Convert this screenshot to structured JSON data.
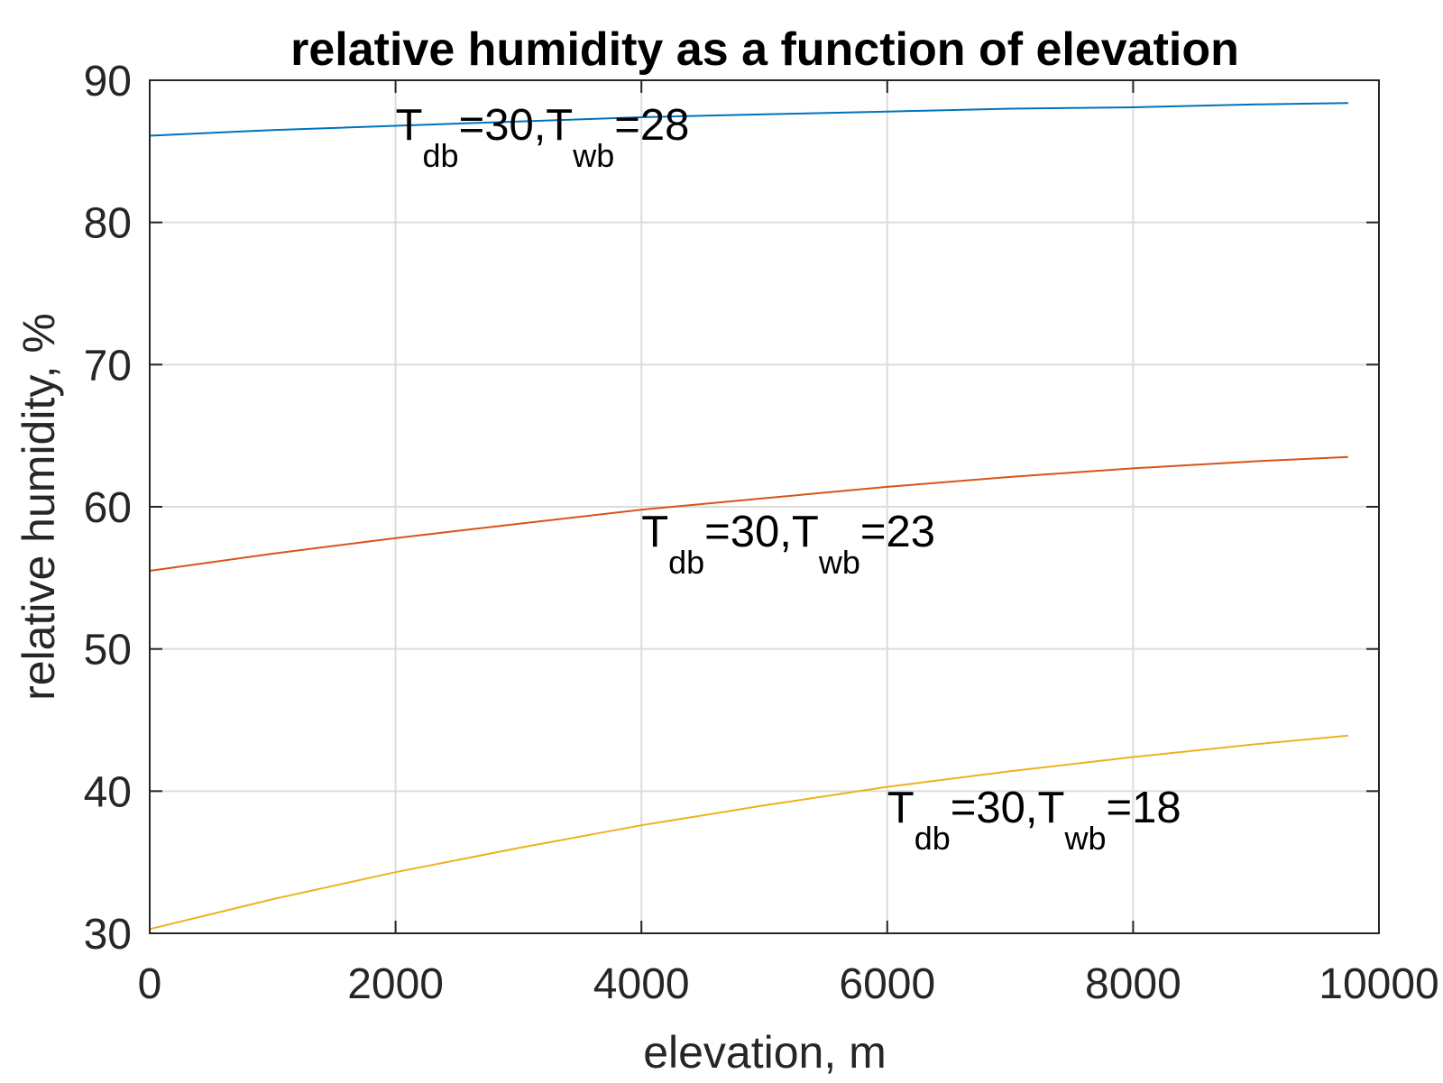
{
  "chart_data": {
    "type": "line",
    "title": "relative humidity as a function of elevation",
    "xlabel": "elevation, m",
    "ylabel": "relative humidity, %",
    "xlim": [
      0,
      10000
    ],
    "ylim": [
      30,
      90
    ],
    "xticks": [
      0,
      2000,
      4000,
      6000,
      8000,
      10000
    ],
    "yticks": [
      30,
      40,
      50,
      60,
      70,
      80,
      90
    ],
    "grid": true,
    "legend": "none",
    "series": [
      {
        "color": "#0072bd",
        "x": [
          0,
          1000,
          2000,
          3000,
          4000,
          5000,
          6000,
          7000,
          8000,
          9000,
          9750
        ],
        "y": [
          86.1,
          86.5,
          86.8,
          87.1,
          87.4,
          87.6,
          87.8,
          88.0,
          88.1,
          88.3,
          88.4
        ]
      },
      {
        "color": "#d95319",
        "x": [
          0,
          1000,
          2000,
          3000,
          4000,
          5000,
          6000,
          7000,
          8000,
          9000,
          9750
        ],
        "y": [
          55.5,
          56.7,
          57.8,
          58.8,
          59.8,
          60.6,
          61.4,
          62.1,
          62.7,
          63.2,
          63.5
        ]
      },
      {
        "color": "#edb120",
        "x": [
          0,
          1000,
          2000,
          3000,
          4000,
          5000,
          6000,
          7000,
          8000,
          9000,
          9750
        ],
        "y": [
          30.3,
          32.4,
          34.3,
          36.0,
          37.6,
          39.0,
          40.3,
          41.4,
          42.4,
          43.3,
          43.9
        ]
      }
    ],
    "annotations": [
      {
        "x": 2000,
        "y": 85.8,
        "base": "T",
        "sub1": "db",
        "mid": "=30,T",
        "sub2": "wb",
        "tail": "=28"
      },
      {
        "x": 4000,
        "y": 57.2,
        "base": "T",
        "sub1": "db",
        "mid": "=30,T",
        "sub2": "wb",
        "tail": "=23"
      },
      {
        "x": 6000,
        "y": 37.8,
        "base": "T",
        "sub1": "db",
        "mid": "=30,T",
        "sub2": "wb",
        "tail": "=18"
      }
    ]
  }
}
